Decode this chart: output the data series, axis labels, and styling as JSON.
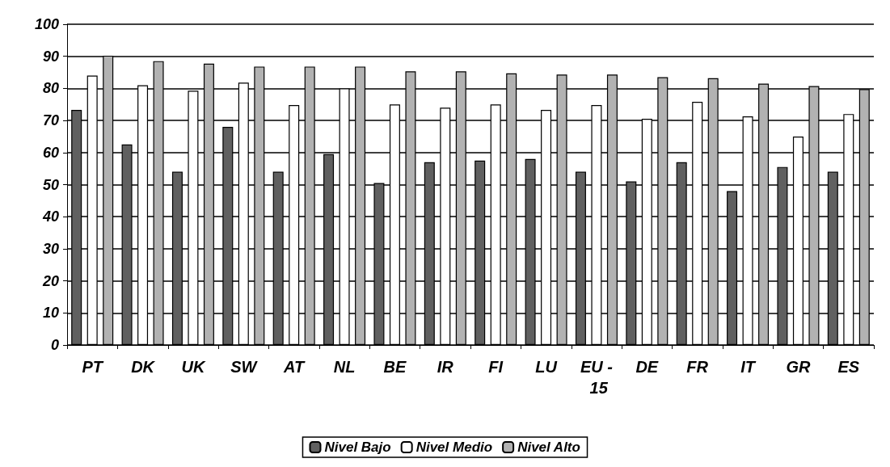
{
  "chart_data": {
    "type": "bar",
    "categories": [
      "PT",
      "DK",
      "UK",
      "SW",
      "AT",
      "NL",
      "BE",
      "IR",
      "FI",
      "LU",
      "EU - 15",
      "DE",
      "FR",
      "IT",
      "GR",
      "ES"
    ],
    "series": [
      {
        "name": "Nivel Bajo",
        "color": "#606060",
        "values": [
          73.3,
          62.5,
          54,
          68,
          54,
          59.5,
          50.5,
          57,
          57.5,
          58,
          54,
          51,
          57,
          48,
          55.5,
          54
        ]
      },
      {
        "name": "Nivel Medio",
        "color": "#ffffff",
        "values": [
          84,
          81,
          79.3,
          81.8,
          74.8,
          80,
          75,
          74,
          75,
          73.3,
          74.8,
          70.5,
          75.8,
          71.3,
          65,
          72
        ]
      },
      {
        "name": "Nivel Alto",
        "color": "#b2b2b2",
        "values": [
          90.2,
          88.5,
          87.7,
          86.8,
          86.8,
          86.8,
          85.3,
          85.3,
          84.7,
          84.3,
          84.3,
          83.5,
          83.2,
          81.5,
          80.7,
          79.8
        ]
      }
    ],
    "ylim": [
      0,
      100
    ],
    "yticks": [
      0,
      10,
      20,
      30,
      40,
      50,
      60,
      70,
      80,
      90,
      100
    ],
    "grid": "y",
    "legend": "bottom"
  }
}
